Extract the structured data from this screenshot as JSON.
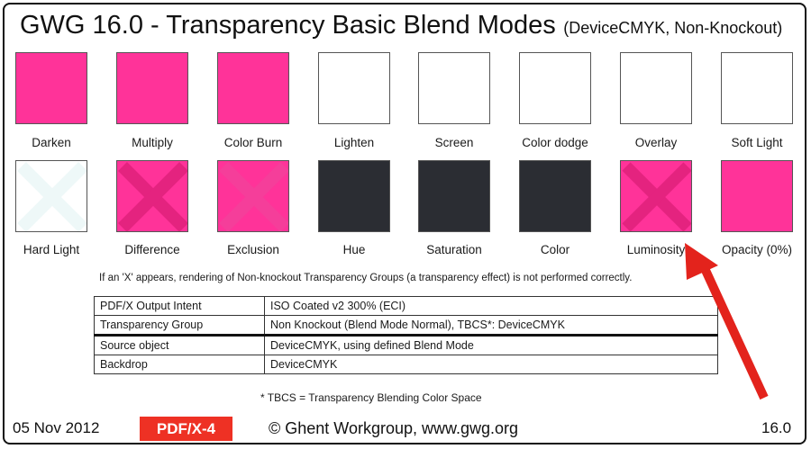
{
  "title": {
    "main": "GWG 16.0 - Transparency Basic Blend Modes",
    "sub": "(DeviceCMYK, Non-Knockout)"
  },
  "colors": {
    "magenta": "#ff3399",
    "x_magenta": "#e4237f",
    "dark": "#2b2d33",
    "white": "#ffffff",
    "x_white": "#eef8f8",
    "x_exclusion": "#f53e9a",
    "arrow_red": "#e3231c",
    "badge_red": "#ee3124"
  },
  "swatches": [
    {
      "label": "Darken",
      "fill": "magenta",
      "x": "none"
    },
    {
      "label": "Multiply",
      "fill": "magenta",
      "x": "none"
    },
    {
      "label": "Color Burn",
      "fill": "magenta",
      "x": "none"
    },
    {
      "label": "Lighten",
      "fill": "white",
      "x": "none"
    },
    {
      "label": "Screen",
      "fill": "white",
      "x": "none"
    },
    {
      "label": "Color dodge",
      "fill": "white",
      "x": "none"
    },
    {
      "label": "Overlay",
      "fill": "white",
      "x": "none"
    },
    {
      "label": "Soft Light",
      "fill": "white",
      "x": "none"
    },
    {
      "label": "Hard Light",
      "fill": "white",
      "x": "x_white"
    },
    {
      "label": "Difference",
      "fill": "magenta",
      "x": "x_magenta"
    },
    {
      "label": "Exclusion",
      "fill": "magenta",
      "x": "x_exclusion"
    },
    {
      "label": "Hue",
      "fill": "dark",
      "x": "none"
    },
    {
      "label": "Saturation",
      "fill": "dark",
      "x": "none"
    },
    {
      "label": "Color",
      "fill": "dark",
      "x": "none"
    },
    {
      "label": "Luminosity",
      "fill": "magenta",
      "x": "x_magenta_strong"
    },
    {
      "label": "Opacity (0%)",
      "fill": "magenta",
      "x": "none"
    }
  ],
  "note": "If an 'X' appears, rendering of Non-knockout Transparency Groups (a transparency effect) is not performed correctly.",
  "info_table": [
    {
      "key": "PDF/X Output Intent",
      "value": "ISO Coated v2 300% (ECI)"
    },
    {
      "key": "Transparency Group",
      "value": "Non Knockout (Blend Mode Normal), TBCS*: DeviceCMYK"
    },
    {
      "key": "Source object",
      "value": "DeviceCMYK, using defined Blend Mode"
    },
    {
      "key": "Backdrop",
      "value": "DeviceCMYK"
    }
  ],
  "footnote": "* TBCS = Transparency Blending Color Space",
  "footer": {
    "date": "05 Nov 2012",
    "badge": "PDF/X-4",
    "copyright": "© Ghent Workgroup, www.gwg.org",
    "version": "16.0"
  }
}
